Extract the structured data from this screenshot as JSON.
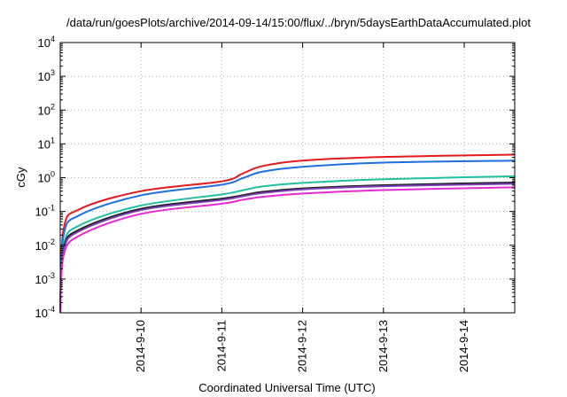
{
  "chart_data": {
    "type": "line",
    "title": "/data/run/goesPlots/archive/2014-09-14/15:00/flux/../bryn/5daysEarthDataAccumulated.plot",
    "xlabel": "Coordinated Universal Time (UTC)",
    "ylabel": "cGy",
    "y_scale": "log",
    "ylim": [
      0.0001,
      10000
    ],
    "xlim": [
      "2014-09-09 00:00",
      "2014-09-14 15:00"
    ],
    "grid": true,
    "x_ticks": [
      "2014-9-10",
      "2014-9-11",
      "2014-9-12",
      "2014-9-13",
      "2014-9-14"
    ],
    "y_ticks": [
      {
        "base": "10",
        "exp": "4"
      },
      {
        "base": "10",
        "exp": "3"
      },
      {
        "base": "10",
        "exp": "2"
      },
      {
        "base": "10",
        "exp": "1"
      },
      {
        "base": "10",
        "exp": "0"
      },
      {
        "base": "10",
        "exp": "-1"
      },
      {
        "base": "10",
        "exp": "-2"
      },
      {
        "base": "10",
        "exp": "-3"
      },
      {
        "base": "10",
        "exp": "-4"
      }
    ],
    "series": [
      {
        "color": "#e41a1c",
        "x": [
          "2014-09-09 00:00",
          "2014-09-09 01:00",
          "2014-09-09 06:00",
          "2014-09-10 00:00",
          "2014-09-11 00:00",
          "2014-09-11 06:00",
          "2014-09-11 12:00",
          "2014-09-12 00:00",
          "2014-09-13 00:00",
          "2014-09-14 15:00"
        ],
        "values": [
          0.0001,
          0.03,
          0.12,
          0.4,
          0.78,
          1.3,
          2.2,
          3.2,
          4.1,
          4.8
        ]
      },
      {
        "color": "#1f6fdf",
        "x": [
          "2014-09-09 00:00",
          "2014-09-09 01:00",
          "2014-09-09 06:00",
          "2014-09-10 00:00",
          "2014-09-11 00:00",
          "2014-09-11 06:00",
          "2014-09-11 12:00",
          "2014-09-12 00:00",
          "2014-09-13 00:00",
          "2014-09-14 15:00"
        ],
        "values": [
          0.0001,
          0.02,
          0.08,
          0.3,
          0.62,
          0.95,
          1.5,
          2.1,
          2.8,
          3.2
        ]
      },
      {
        "color": "#20c0a0",
        "x": [
          "2014-09-09 00:00",
          "2014-09-09 01:00",
          "2014-09-09 06:00",
          "2014-09-10 00:00",
          "2014-09-11 00:00",
          "2014-09-11 06:00",
          "2014-09-11 12:00",
          "2014-09-12 00:00",
          "2014-09-13 00:00",
          "2014-09-14 15:00"
        ],
        "values": [
          0.0001,
          0.01,
          0.04,
          0.15,
          0.32,
          0.42,
          0.55,
          0.7,
          0.9,
          1.1
        ]
      },
      {
        "color": "#1a1a1a",
        "x": [
          "2014-09-09 00:00",
          "2014-09-09 01:00",
          "2014-09-09 06:00",
          "2014-09-10 00:00",
          "2014-09-11 00:00",
          "2014-09-11 06:00",
          "2014-09-11 12:00",
          "2014-09-12 00:00",
          "2014-09-13 00:00",
          "2014-09-14 15:00"
        ],
        "values": [
          0.0001,
          0.008,
          0.03,
          0.12,
          0.24,
          0.3,
          0.38,
          0.48,
          0.6,
          0.72
        ]
      },
      {
        "color": "#7b3fb5",
        "x": [
          "2014-09-09 00:00",
          "2014-09-09 01:00",
          "2014-09-09 06:00",
          "2014-09-10 00:00",
          "2014-09-11 00:00",
          "2014-09-11 06:00",
          "2014-09-11 12:00",
          "2014-09-12 00:00",
          "2014-09-13 00:00",
          "2014-09-14 15:00"
        ],
        "values": [
          0.0001,
          0.007,
          0.027,
          0.11,
          0.22,
          0.28,
          0.35,
          0.45,
          0.56,
          0.66
        ]
      },
      {
        "color": "#e62ad2",
        "x": [
          "2014-09-09 00:00",
          "2014-09-09 01:00",
          "2014-09-09 06:00",
          "2014-09-10 00:00",
          "2014-09-11 00:00",
          "2014-09-11 06:00",
          "2014-09-11 12:00",
          "2014-09-12 00:00",
          "2014-09-13 00:00",
          "2014-09-14 15:00"
        ],
        "values": [
          0.0001,
          0.005,
          0.02,
          0.085,
          0.17,
          0.22,
          0.27,
          0.34,
          0.43,
          0.52
        ]
      }
    ]
  }
}
